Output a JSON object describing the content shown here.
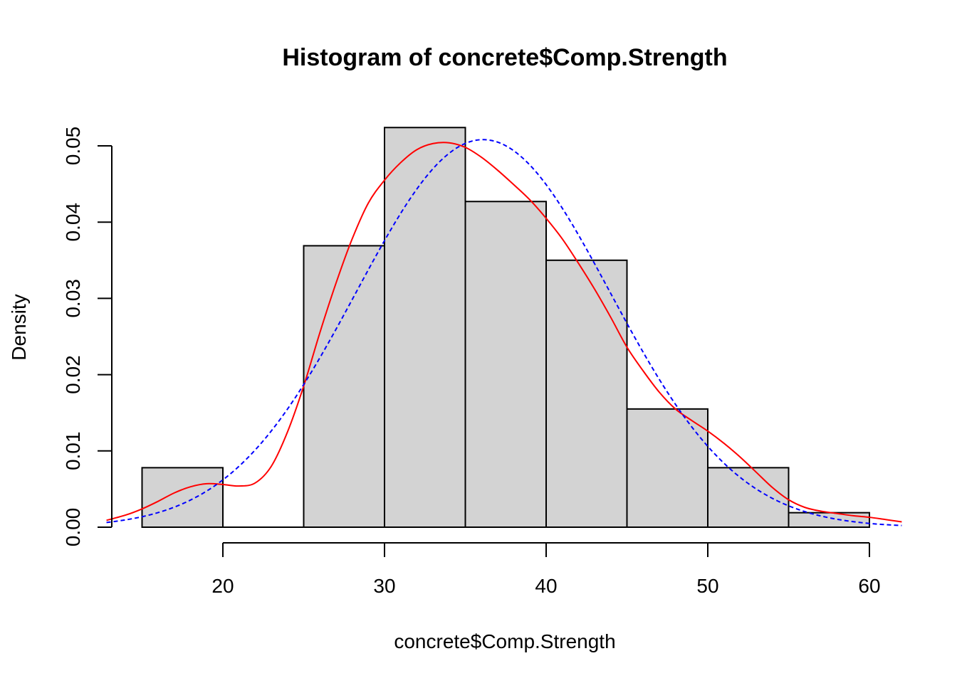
{
  "chart_data": {
    "type": "bar",
    "title": "Histogram of concrete$Comp.Strength",
    "xlabel": "concrete$Comp.Strength",
    "ylabel": "Density",
    "xlim": [
      12.8,
      62.0
    ],
    "ylim": [
      0,
      0.052
    ],
    "x_ticks": [
      20,
      30,
      40,
      50,
      60
    ],
    "x_tick_labels": [
      "20",
      "30",
      "40",
      "50",
      "60"
    ],
    "y_ticks": [
      0,
      0.01,
      0.02,
      0.03,
      0.04,
      0.05
    ],
    "y_tick_labels": [
      "0.00",
      "0.01",
      "0.02",
      "0.03",
      "0.04",
      "0.05"
    ],
    "bins": [
      {
        "from": 15,
        "to": 20,
        "density": 0.0078
      },
      {
        "from": 20,
        "to": 25,
        "density": 0.0
      },
      {
        "from": 25,
        "to": 30,
        "density": 0.0369
      },
      {
        "from": 30,
        "to": 35,
        "density": 0.0524
      },
      {
        "from": 35,
        "to": 40,
        "density": 0.0427
      },
      {
        "from": 40,
        "to": 45,
        "density": 0.035
      },
      {
        "from": 45,
        "to": 50,
        "density": 0.0155
      },
      {
        "from": 50,
        "to": 55,
        "density": 0.0078
      },
      {
        "from": 55,
        "to": 60,
        "density": 0.0019
      }
    ],
    "bar_color": "#d3d3d3",
    "curves": [
      {
        "kind": "kernel-density",
        "color": "#ff0000",
        "dash": "solid",
        "points": [
          [
            12.8,
            0.0009
          ],
          [
            14,
            0.0016
          ],
          [
            15,
            0.0024
          ],
          [
            16,
            0.0034
          ],
          [
            17,
            0.0045
          ],
          [
            18,
            0.0053
          ],
          [
            19,
            0.0057
          ],
          [
            20,
            0.0056
          ],
          [
            21,
            0.0054
          ],
          [
            22,
            0.0058
          ],
          [
            23,
            0.008
          ],
          [
            24,
            0.0125
          ],
          [
            25,
            0.0185
          ],
          [
            26,
            0.0255
          ],
          [
            27,
            0.032
          ],
          [
            28,
            0.0378
          ],
          [
            29,
            0.0425
          ],
          [
            30,
            0.0455
          ],
          [
            31,
            0.0478
          ],
          [
            32,
            0.0495
          ],
          [
            33,
            0.0503
          ],
          [
            34,
            0.0504
          ],
          [
            35,
            0.0498
          ],
          [
            36,
            0.0485
          ],
          [
            37,
            0.0468
          ],
          [
            38,
            0.0449
          ],
          [
            39,
            0.0429
          ],
          [
            40,
            0.0405
          ],
          [
            41,
            0.0378
          ],
          [
            42,
            0.0346
          ],
          [
            43,
            0.0312
          ],
          [
            44,
            0.0275
          ],
          [
            45,
            0.0236
          ],
          [
            46,
            0.0205
          ],
          [
            47,
            0.0177
          ],
          [
            48,
            0.0155
          ],
          [
            49,
            0.014
          ],
          [
            50,
            0.0126
          ],
          [
            51,
            0.011
          ],
          [
            52,
            0.0092
          ],
          [
            53,
            0.0072
          ],
          [
            54,
            0.0052
          ],
          [
            55,
            0.0036
          ],
          [
            56,
            0.0026
          ],
          [
            57,
            0.0021
          ],
          [
            58,
            0.0018
          ],
          [
            59,
            0.0015
          ],
          [
            60,
            0.0013
          ],
          [
            61,
            0.001
          ],
          [
            62,
            0.0007
          ]
        ]
      },
      {
        "kind": "normal-fit",
        "color": "#0000ff",
        "dash": "dashed",
        "mean": 36.1,
        "sd": 7.85,
        "x_range": [
          12.8,
          62.0
        ]
      }
    ]
  }
}
